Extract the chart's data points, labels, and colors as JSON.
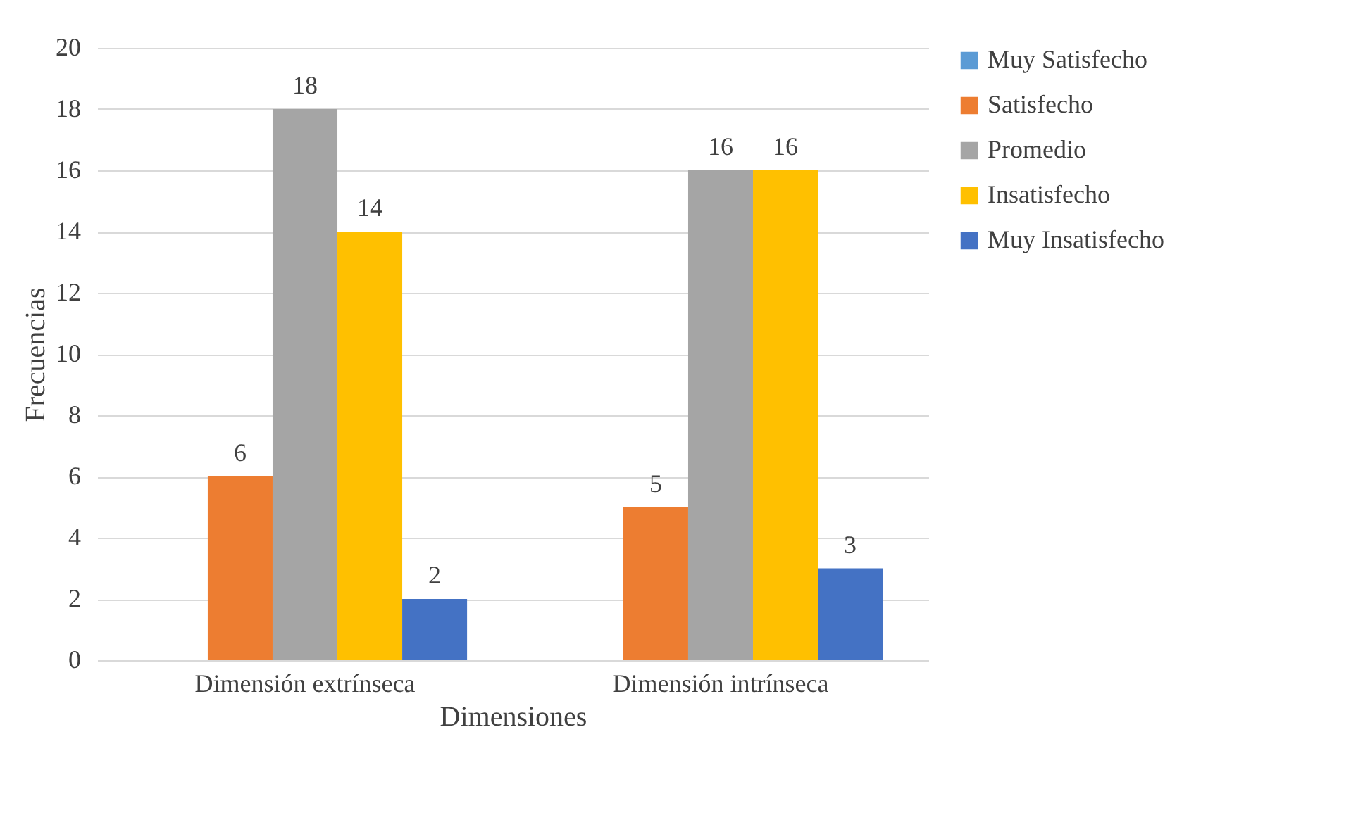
{
  "chart_data": {
    "type": "bar",
    "xlabel": "Dimensiones",
    "ylabel": "Frecuencias",
    "categories": [
      "Dimensión extrínseca",
      "Dimensión intrínseca"
    ],
    "series": [
      {
        "name": "Muy Satisfecho",
        "color": "#5b9bd5",
        "values": [
          0,
          0
        ],
        "value_labels": [
          null,
          null
        ]
      },
      {
        "name": "Satisfecho",
        "color": "#ed7d31",
        "values": [
          6,
          5
        ],
        "value_labels": [
          "6",
          "5"
        ]
      },
      {
        "name": "Promedio",
        "color": "#a5a5a5",
        "values": [
          18,
          16
        ],
        "value_labels": [
          "18",
          "16"
        ]
      },
      {
        "name": "Insatisfecho",
        "color": "#ffc000",
        "values": [
          14,
          16
        ],
        "value_labels": [
          "14",
          "16"
        ]
      },
      {
        "name": "Muy Insatisfecho",
        "color": "#4472c4",
        "values": [
          2,
          3
        ],
        "value_labels": [
          "2",
          "3"
        ]
      }
    ],
    "ylim": [
      0,
      20
    ],
    "yticks": [
      0,
      2,
      4,
      6,
      8,
      10,
      12,
      14,
      16,
      18,
      20
    ],
    "grid": "y",
    "legend": "right"
  }
}
